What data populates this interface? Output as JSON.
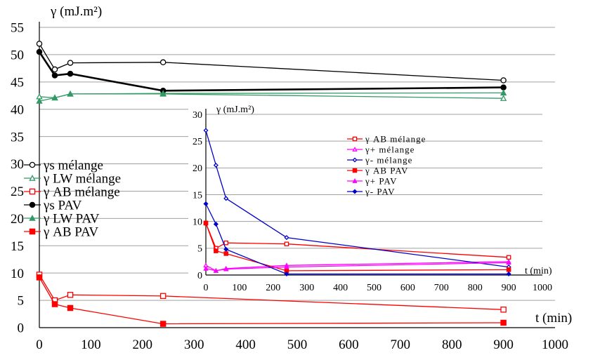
{
  "chart_data": [
    {
      "type": "line",
      "ylabel": "γ  (mJ.m²)",
      "xlabel": "t (min)",
      "xlim": [
        0,
        1000
      ],
      "ylim": [
        0,
        55
      ],
      "x_ticks": [
        "0",
        "100",
        "200",
        "300",
        "400",
        "500",
        "600",
        "700",
        "800",
        "900",
        "1000"
      ],
      "y_ticks": [
        "0",
        "5",
        "10",
        "15",
        "20",
        "25",
        "30",
        "35",
        "40",
        "45",
        "50",
        "55"
      ],
      "grid": "horizontal",
      "legend_position": "left",
      "series": [
        {
          "name": "γs mélange",
          "color": "#000000",
          "marker": "circle-open",
          "x": [
            0,
            30,
            60,
            240,
            900
          ],
          "y": [
            52,
            47.3,
            48.5,
            48.6,
            45.3
          ]
        },
        {
          "name": "γ LW mélange",
          "color": "#339966",
          "marker": "triangle-open",
          "x": [
            0,
            30,
            60,
            240,
            900
          ],
          "y": [
            42.3,
            42.1,
            42.8,
            42.8,
            42.0
          ]
        },
        {
          "name": "γ AB mélange",
          "color": "#ff0000",
          "marker": "square-open",
          "x": [
            0,
            30,
            60,
            240,
            900
          ],
          "y": [
            9.7,
            5.0,
            6.0,
            5.8,
            3.3
          ]
        },
        {
          "name": "γs PAV",
          "color": "#000000",
          "marker": "circle-filled",
          "x": [
            0,
            30,
            60,
            240,
            900
          ],
          "y": [
            50.5,
            46.2,
            46.5,
            43.4,
            44.0
          ]
        },
        {
          "name": "γ LW PAV",
          "color": "#339966",
          "marker": "triangle-filled",
          "x": [
            0,
            30,
            60,
            240,
            900
          ],
          "y": [
            41.5,
            42.1,
            42.8,
            42.9,
            43.0
          ]
        },
        {
          "name": "γ AB PAV",
          "color": "#ff0000",
          "marker": "square-filled",
          "x": [
            0,
            30,
            60,
            240,
            900
          ],
          "y": [
            9.2,
            4.3,
            3.6,
            0.7,
            0.9
          ]
        }
      ]
    },
    {
      "type": "line",
      "ylabel": "γ  (mJ.m²)",
      "xlabel": "t (min)",
      "xlim": [
        0,
        1000
      ],
      "ylim": [
        0,
        30
      ],
      "x_ticks": [
        "0",
        "100",
        "200",
        "300",
        "400",
        "500",
        "600",
        "700",
        "800",
        "900",
        "1000"
      ],
      "y_ticks": [
        "0",
        "5",
        "10",
        "15",
        "20",
        "25",
        "30"
      ],
      "grid": "horizontal",
      "legend_position": "top-right",
      "series": [
        {
          "name": "γ AB mélange",
          "color": "#ff0000",
          "marker": "square-open",
          "x": [
            0,
            30,
            60,
            240,
            900
          ],
          "y": [
            9.7,
            5.0,
            6.0,
            5.8,
            3.3
          ]
        },
        {
          "name": "γ+  mélange",
          "color": "#ff00ff",
          "marker": "triangle-open",
          "x": [
            0,
            30,
            60,
            240,
            900
          ],
          "y": [
            1.8,
            0.8,
            1.2,
            1.8,
            2.5
          ]
        },
        {
          "name": "γ-  mélange",
          "color": "#0000cc",
          "marker": "diamond-open",
          "x": [
            0,
            30,
            60,
            240,
            900
          ],
          "y": [
            27,
            20.5,
            14.3,
            7.0,
            1.5
          ]
        },
        {
          "name": "γ AB PAV",
          "color": "#ff0000",
          "marker": "square-filled",
          "x": [
            0,
            30,
            60,
            240,
            900
          ],
          "y": [
            9.7,
            4.5,
            4.0,
            0.8,
            1.0
          ]
        },
        {
          "name": "γ+  PAV",
          "color": "#ff00ff",
          "marker": "triangle-filled",
          "x": [
            0,
            30,
            60,
            240,
            900
          ],
          "y": [
            1.2,
            0.8,
            1.1,
            1.5,
            2.3
          ]
        },
        {
          "name": "γ-  PAV",
          "color": "#0000cc",
          "marker": "diamond-filled",
          "x": [
            0,
            30,
            60,
            240,
            900
          ],
          "y": [
            13.3,
            9.5,
            4.8,
            0.2,
            0.2
          ]
        }
      ]
    }
  ]
}
